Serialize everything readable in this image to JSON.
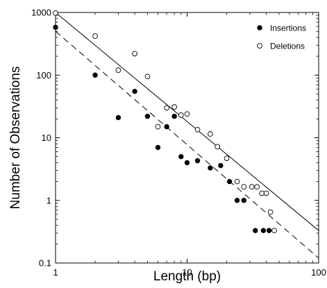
{
  "chart_data": {
    "type": "scatter",
    "xlabel": "Length (bp)",
    "ylabel": "Number of Observations",
    "xscale": "log",
    "yscale": "log",
    "xlim": [
      1,
      100
    ],
    "ylim": [
      0.1,
      1000
    ],
    "x_ticks": [
      "1",
      "10",
      "100"
    ],
    "y_ticks": [
      "0.1",
      "1",
      "10",
      "100",
      "1000"
    ],
    "grid": false,
    "legend_position": "top-right",
    "series": [
      {
        "name": "Insertions",
        "marker": "filled-circle",
        "color": "#000000",
        "points": [
          [
            1,
            580
          ],
          [
            2,
            100
          ],
          [
            3,
            21
          ],
          [
            4,
            55
          ],
          [
            5,
            22
          ],
          [
            6,
            7
          ],
          [
            7,
            15
          ],
          [
            8,
            22
          ],
          [
            9,
            5
          ],
          [
            10,
            4
          ],
          [
            12,
            4.3
          ],
          [
            15,
            3.3
          ],
          [
            18,
            3.6
          ],
          [
            21,
            2.0
          ],
          [
            24,
            1.0
          ],
          [
            27,
            1.0
          ],
          [
            33,
            0.33
          ],
          [
            38,
            0.33
          ],
          [
            42,
            0.33
          ]
        ]
      },
      {
        "name": "Deletions",
        "marker": "open-circle",
        "color": "#000000",
        "points": [
          [
            1,
            980
          ],
          [
            2,
            420
          ],
          [
            3,
            120
          ],
          [
            4,
            220
          ],
          [
            5,
            95
          ],
          [
            6,
            15
          ],
          [
            7,
            30
          ],
          [
            8,
            31
          ],
          [
            9,
            23
          ],
          [
            10,
            24
          ],
          [
            12,
            13.5
          ],
          [
            15,
            11.5
          ],
          [
            17,
            7.2
          ],
          [
            20,
            4.7
          ],
          [
            24,
            2.0
          ],
          [
            27,
            1.65
          ],
          [
            31,
            1.65
          ],
          [
            34,
            1.65
          ],
          [
            37,
            1.3
          ],
          [
            40,
            1.3
          ],
          [
            43,
            0.65
          ],
          [
            46,
            0.33
          ]
        ]
      }
    ],
    "fit_lines": [
      {
        "style": "solid",
        "x": [
          1,
          100
        ],
        "y": [
          1000,
          0.33
        ]
      },
      {
        "style": "dashed",
        "x": [
          1,
          100
        ],
        "y": [
          500,
          0.12
        ]
      }
    ]
  }
}
